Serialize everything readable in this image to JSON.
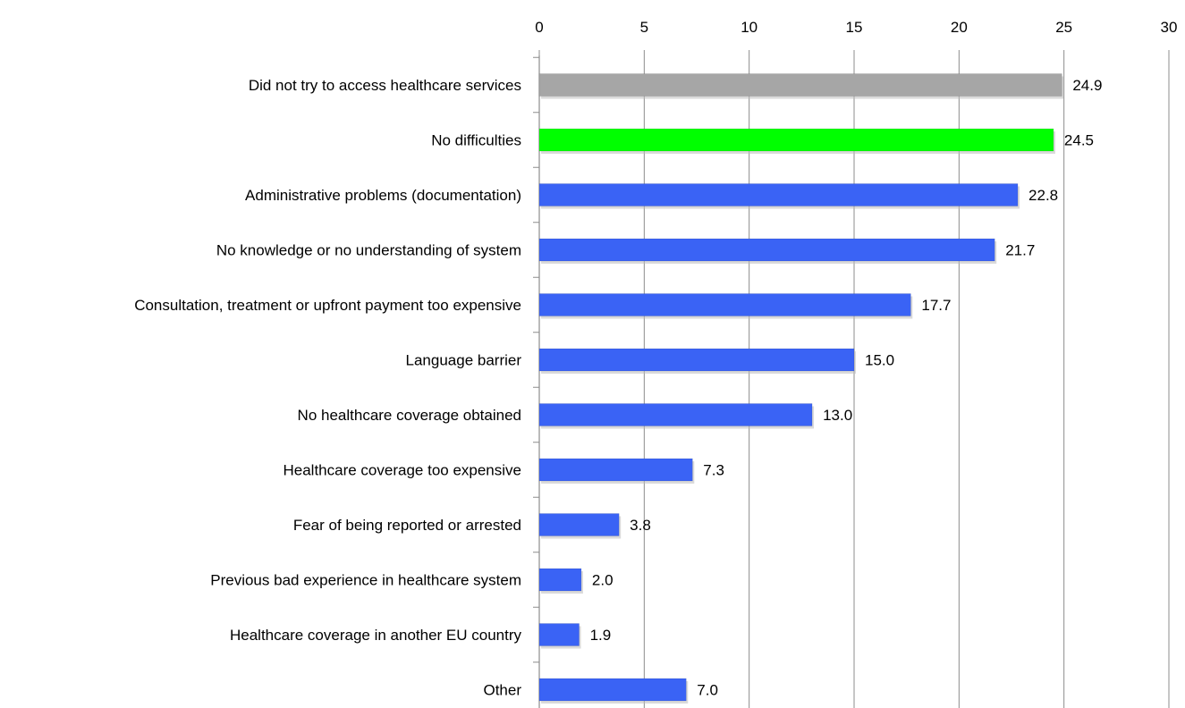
{
  "chart_data": {
    "type": "bar",
    "orientation": "horizontal",
    "categories": [
      "Did not try to access healthcare services",
      "No difficulties",
      "Administrative problems (documentation)",
      "No knowledge or no understanding of system",
      "Consultation, treatment  or upfront payment  too expensive",
      "Language barrier",
      "No healthcare coverage obtained",
      "Healthcare coverage too  expensive",
      "Fear of being reported or arrested",
      "Previous bad experience in healthcare system",
      "Healthcare coverage in  another EU country",
      "Other"
    ],
    "values": [
      24.9,
      24.5,
      22.8,
      21.7,
      17.7,
      15.0,
      13.0,
      7.3,
      3.8,
      2.0,
      1.9,
      7.0
    ],
    "data_labels": [
      "24.9",
      "24.5",
      "22.8",
      "21.7",
      "17.7",
      "15.0",
      "13.0",
      "7.3",
      "3.8",
      "2.0",
      "1.9",
      "7.0"
    ],
    "bar_colors": [
      "#a6a6a6",
      "#00ff00",
      "#3a63f5",
      "#3a63f5",
      "#3a63f5",
      "#3a63f5",
      "#3a63f5",
      "#3a63f5",
      "#3a63f5",
      "#3a63f5",
      "#3a63f5",
      "#3a63f5"
    ],
    "xlim": [
      0,
      30
    ],
    "x_ticks": [
      0,
      5,
      10,
      15,
      20,
      25,
      30
    ],
    "x_tick_labels": [
      "0",
      "5",
      "10",
      "15",
      "20",
      "25",
      "30"
    ],
    "x_axis_position": "top",
    "grid": true,
    "legend": "none",
    "title": "",
    "xlabel": "",
    "ylabel": ""
  }
}
